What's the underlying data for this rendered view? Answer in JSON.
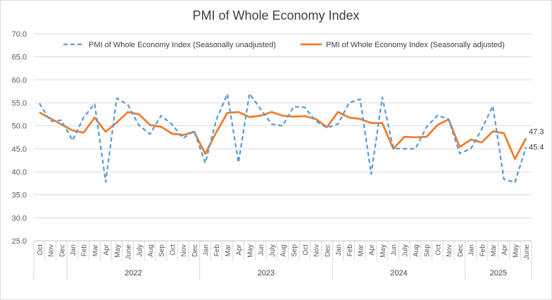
{
  "chart_data": {
    "type": "line",
    "title": "PMI of Whole Economy Index",
    "xlabel": "",
    "ylabel": "",
    "ylim": [
      25.0,
      70.0
    ],
    "yticks": [
      "25.0",
      "30.0",
      "35.0",
      "40.0",
      "45.0",
      "50.0",
      "55.0",
      "60.0",
      "65.0",
      "70.0"
    ],
    "grid": true,
    "legend_position": "top",
    "categories": [
      "Oct",
      "Nov",
      "Dec",
      "Jan",
      "Feb",
      "Mar",
      "Apr",
      "May",
      "June",
      "July",
      "Aug",
      "Sep",
      "Oct",
      "Nov",
      "Dec",
      "Jan",
      "Feb",
      "Mar",
      "Apr",
      "May",
      "Jun",
      "July",
      "Aug",
      "Sep",
      "Oct",
      "Nov",
      "Dec",
      "Jan",
      "Feb",
      "Mar",
      "Apr",
      "May",
      "Jun",
      "July",
      "Aug",
      "Sep",
      "Oct",
      "Nov",
      "Dec",
      "Jan",
      "Feb",
      "Mar",
      "Apr",
      "May",
      "June"
    ],
    "year_groups": [
      {
        "label": "",
        "start": 0,
        "end": 2
      },
      {
        "label": "2022",
        "start": 3,
        "end": 14
      },
      {
        "label": "2023",
        "start": 15,
        "end": 26
      },
      {
        "label": "2024",
        "start": 27,
        "end": 38
      },
      {
        "label": "2025",
        "start": 39,
        "end": 44
      }
    ],
    "series": [
      {
        "name": "PMI of Whole Economy Index (Seasonally unadjusted)",
        "color": "#5b9bd5",
        "dashed": true,
        "values": [
          54.9,
          51.0,
          51.2,
          46.8,
          51.8,
          54.8,
          37.8,
          56.0,
          54.6,
          50.1,
          48.2,
          52.2,
          50.3,
          47.3,
          48.9,
          41.9,
          51.3,
          56.9,
          42.0,
          57.0,
          53.6,
          50.4,
          50.0,
          54.2,
          54.0,
          51.0,
          49.6,
          50.4,
          55.0,
          55.8,
          39.5,
          56.2,
          45.1,
          45.0,
          45.0,
          49.7,
          52.3,
          51.4,
          44.0,
          45.0,
          49.3,
          54.3,
          38.4,
          37.7,
          45.4
        ],
        "end_label": "45.4"
      },
      {
        "name": "PMI of Whole Economy Index (Seasonally adjusted)",
        "color": "#ed7d31",
        "dashed": false,
        "values": [
          52.9,
          51.6,
          50.3,
          49.0,
          48.5,
          51.8,
          48.7,
          50.7,
          53.0,
          52.5,
          50.2,
          49.8,
          48.3,
          48.0,
          48.7,
          43.9,
          48.6,
          52.8,
          53.0,
          51.9,
          52.2,
          53.0,
          52.2,
          52.0,
          52.1,
          51.5,
          49.7,
          53.0,
          51.8,
          51.5,
          50.6,
          50.6,
          45.0,
          47.6,
          47.5,
          47.6,
          50.2,
          51.4,
          45.4,
          47.0,
          46.4,
          48.8,
          48.4,
          42.8,
          47.3
        ],
        "end_label": "47.3"
      }
    ]
  }
}
